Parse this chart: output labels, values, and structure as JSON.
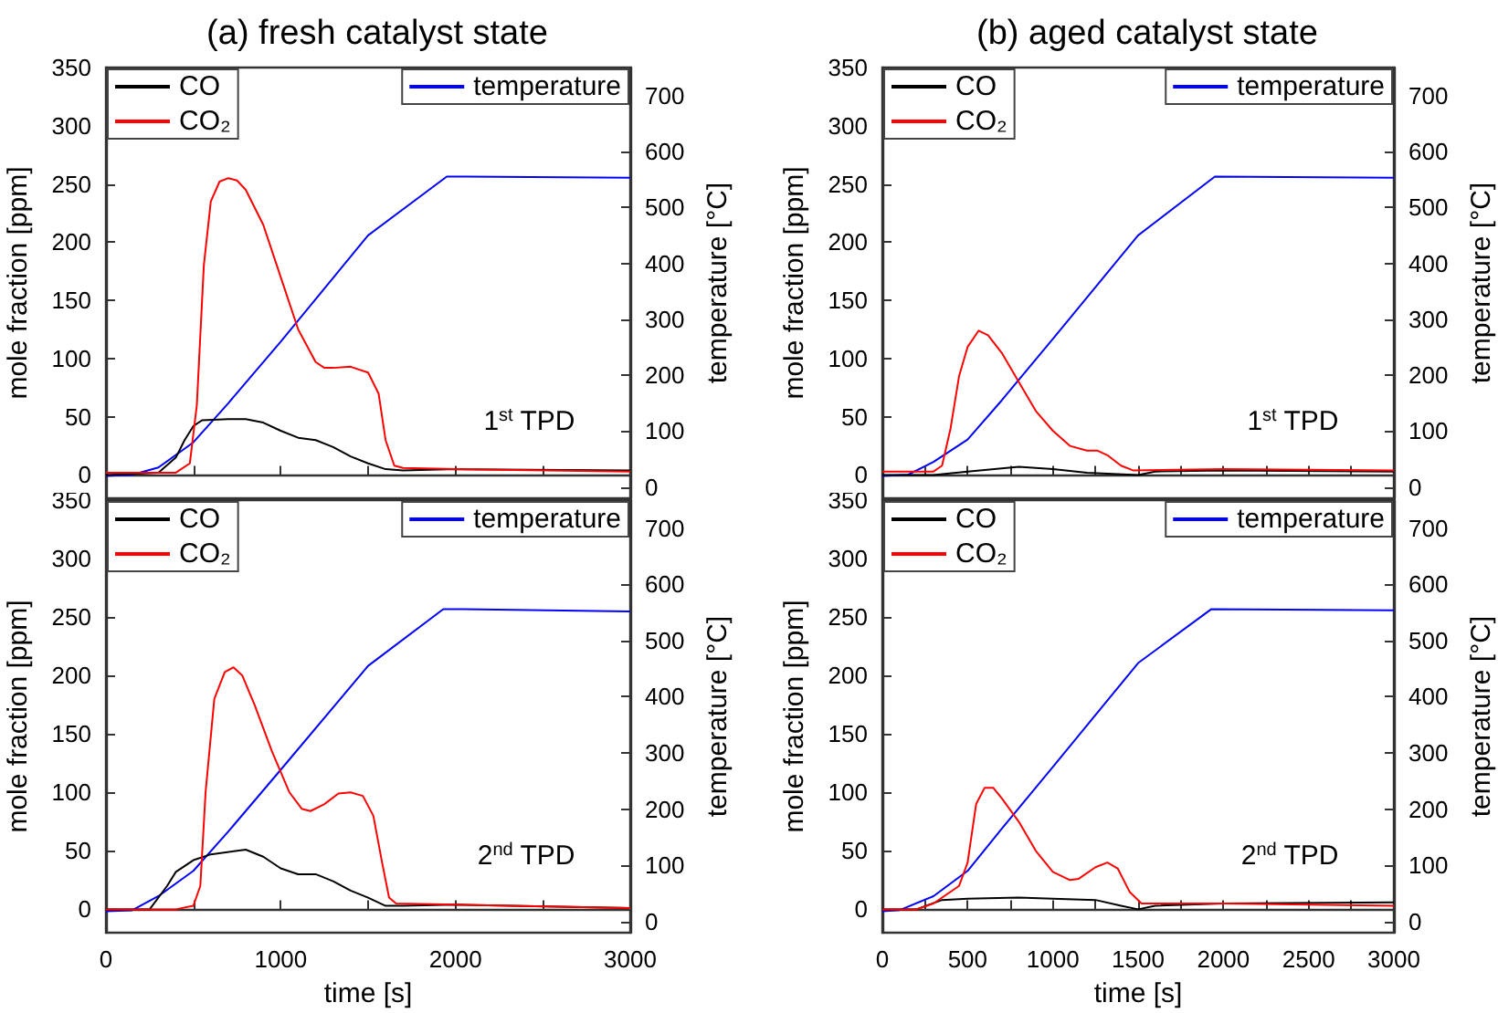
{
  "chart_data": [
    {
      "type": "line",
      "title": "(a) fresh catalyst state",
      "ylabel": "mole fraction [ppm]",
      "y2label": "temperature [°C]",
      "annotations": [
        "1$^{st}$ TPD"
      ],
      "legend": "top",
      "tick_labels": "y",
      "xlim": [
        0,
        3000
      ],
      "xticks": [
        0,
        {
          "value": 500,
          "label": null
        },
        1000,
        {
          "value": 1500,
          "label": null
        },
        2000,
        {
          "value": 2500,
          "label": null
        },
        3000
      ],
      "ylim": [
        -20,
        350
      ],
      "yticks": [
        0,
        50,
        100,
        150,
        200,
        250,
        300,
        350
      ],
      "y2lim": [
        -20,
        750
      ],
      "y2ticks": [
        0,
        100,
        200,
        300,
        400,
        500,
        600,
        700
      ],
      "series": [
        {
          "name": "CO",
          "color": "#000000",
          "x": [
            0,
            300,
            400,
            450,
            500,
            550,
            700,
            800,
            900,
            1000,
            1100,
            1200,
            1300,
            1400,
            1500,
            1600,
            1700,
            2000,
            3000
          ],
          "values": [
            0,
            2,
            15,
            30,
            42,
            47,
            48,
            48,
            45,
            38,
            32,
            30,
            24,
            16,
            10,
            5,
            4,
            5,
            4
          ]
        },
        {
          "name": "CO₂",
          "color": "#ff0000",
          "x": [
            0,
            400,
            480,
            520,
            560,
            600,
            650,
            700,
            750,
            800,
            900,
            1000,
            1100,
            1200,
            1250,
            1300,
            1400,
            1500,
            1560,
            1600,
            1650,
            1700,
            2000,
            3000
          ],
          "values": [
            2,
            2,
            10,
            60,
            180,
            235,
            252,
            255,
            253,
            245,
            215,
            170,
            125,
            97,
            92,
            92,
            93,
            88,
            70,
            30,
            8,
            6,
            5,
            3
          ]
        },
        {
          "name": "temperature",
          "color": "#0000ff",
          "axis": "y2",
          "x": [
            0,
            150,
            300,
            500,
            700,
            1000,
            1500,
            1950,
            2000,
            3000
          ],
          "values": [
            20,
            22,
            35,
            80,
            150,
            260,
            450,
            555,
            555,
            553
          ]
        }
      ]
    },
    {
      "type": "line",
      "title": "(b) aged catalyst state",
      "ylabel": "mole fraction [ppm]",
      "y2label": "temperature [°C]",
      "annotations": [
        "1$^{st}$ TPD"
      ],
      "legend": "top",
      "tick_labels": "y",
      "xlim": [
        0,
        3000
      ],
      "xticks": [
        0,
        {
          "value": 250,
          "label": null
        },
        500,
        {
          "value": 750,
          "label": null
        },
        1000,
        {
          "value": 1250,
          "label": null
        },
        1500,
        {
          "value": 1750,
          "label": null
        },
        2000,
        {
          "value": 2250,
          "label": null
        },
        2500,
        {
          "value": 2750,
          "label": null
        },
        3000
      ],
      "ylim": [
        -20,
        350
      ],
      "yticks": [
        0,
        50,
        100,
        150,
        200,
        250,
        300,
        350
      ],
      "y2lim": [
        -20,
        750
      ],
      "y2ticks": [
        0,
        100,
        200,
        300,
        400,
        500,
        600,
        700
      ],
      "series": [
        {
          "name": "CO",
          "color": "#000000",
          "x": [
            0,
            300,
            500,
            800,
            1000,
            1200,
            1500,
            1600,
            2000,
            3000
          ],
          "values": [
            0,
            0,
            3,
            7,
            5,
            2,
            0,
            3,
            4,
            3
          ]
        },
        {
          "name": "CO₂",
          "color": "#ff0000",
          "x": [
            0,
            300,
            350,
            400,
            450,
            500,
            565,
            620,
            700,
            800,
            900,
            1000,
            1100,
            1200,
            1260,
            1320,
            1400,
            1470,
            2000,
            3000
          ],
          "values": [
            3,
            3,
            8,
            40,
            85,
            110,
            124,
            120,
            105,
            80,
            55,
            38,
            25,
            21,
            21,
            17,
            8,
            4,
            5,
            4
          ]
        },
        {
          "name": "temperature",
          "color": "#0000ff",
          "axis": "y2",
          "x": [
            0,
            150,
            300,
            500,
            700,
            1000,
            1500,
            1950,
            3000
          ],
          "values": [
            20,
            22,
            45,
            85,
            155,
            265,
            450,
            555,
            553
          ]
        }
      ]
    },
    {
      "type": "line",
      "xlabel": "time [s]",
      "ylabel": "mole fraction [ppm]",
      "y2label": "temperature [°C]",
      "annotations": [
        "2$^{nd}$ TPD"
      ],
      "legend": "top",
      "xlim": [
        0,
        3000
      ],
      "xticks": [
        0,
        {
          "value": 500,
          "label": null
        },
        1000,
        {
          "value": 1500,
          "label": null
        },
        2000,
        {
          "value": 2500,
          "label": null
        },
        3000
      ],
      "ylim": [
        -20,
        350
      ],
      "yticks": [
        0,
        50,
        100,
        150,
        200,
        250,
        300,
        350
      ],
      "y2lim": [
        -20,
        750
      ],
      "y2ticks": [
        0,
        100,
        200,
        300,
        400,
        500,
        600,
        700
      ],
      "series": [
        {
          "name": "CO",
          "color": "#000000",
          "x": [
            0,
            250,
            350,
            400,
            500,
            600,
            800,
            900,
            1000,
            1100,
            1200,
            1300,
            1400,
            1500,
            1600,
            1700,
            2000,
            3000
          ],
          "values": [
            0,
            0,
            20,
            32,
            42,
            47,
            51,
            45,
            35,
            30,
            30,
            24,
            16,
            10,
            3,
            3,
            4,
            1
          ]
        },
        {
          "name": "CO₂",
          "color": "#ff0000",
          "x": [
            0,
            400,
            500,
            540,
            570,
            620,
            680,
            730,
            780,
            850,
            950,
            1050,
            1120,
            1170,
            1250,
            1330,
            1400,
            1470,
            1530,
            1580,
            1620,
            1660,
            2000,
            3000
          ],
          "values": [
            0,
            0,
            3,
            20,
            100,
            180,
            203,
            207,
            200,
            175,
            135,
            100,
            86,
            84,
            90,
            99,
            100,
            97,
            80,
            40,
            10,
            5,
            4,
            1
          ]
        },
        {
          "name": "temperature",
          "color": "#0000ff",
          "axis": "y2",
          "x": [
            0,
            150,
            300,
            500,
            700,
            1000,
            1500,
            1930,
            2000,
            3000
          ],
          "values": [
            18,
            20,
            45,
            90,
            160,
            270,
            455,
            556,
            556,
            552
          ]
        }
      ]
    },
    {
      "type": "line",
      "xlabel": "time [s]",
      "ylabel": "mole fraction [ppm]",
      "y2label": "temperature [°C]",
      "annotations": [
        "2$^{nd}$ TPD"
      ],
      "legend": "top",
      "xlim": [
        0,
        3000
      ],
      "xticks": [
        0,
        {
          "value": 250,
          "label": null
        },
        500,
        {
          "value": 750,
          "label": null
        },
        1000,
        {
          "value": 1250,
          "label": null
        },
        1500,
        {
          "value": 1750,
          "label": null
        },
        2000,
        {
          "value": 2250,
          "label": null
        },
        2500,
        {
          "value": 2750,
          "label": null
        },
        3000
      ],
      "ylim": [
        -20,
        350
      ],
      "yticks": [
        0,
        50,
        100,
        150,
        200,
        250,
        300,
        350
      ],
      "y2lim": [
        -20,
        750
      ],
      "y2ticks": [
        0,
        100,
        200,
        300,
        400,
        500,
        600,
        700
      ],
      "series": [
        {
          "name": "CO",
          "color": "#000000",
          "x": [
            0,
            200,
            350,
            500,
            800,
            1000,
            1250,
            1400,
            1500,
            1600,
            2000,
            3000
          ],
          "values": [
            0,
            0,
            8,
            9,
            10,
            9,
            8,
            3,
            0,
            3,
            5,
            6
          ]
        },
        {
          "name": "CO₂",
          "color": "#ff0000",
          "x": [
            0,
            200,
            300,
            450,
            500,
            550,
            600,
            650,
            700,
            800,
            900,
            1000,
            1100,
            1150,
            1250,
            1320,
            1380,
            1450,
            1520,
            2000,
            3000
          ],
          "values": [
            0,
            0,
            5,
            20,
            40,
            90,
            104,
            104,
            95,
            75,
            50,
            32,
            25,
            26,
            36,
            40,
            35,
            15,
            5,
            5,
            3
          ]
        },
        {
          "name": "temperature",
          "color": "#0000ff",
          "axis": "y2",
          "x": [
            0,
            100,
            300,
            500,
            700,
            1000,
            1500,
            1930,
            3000
          ],
          "values": [
            18,
            20,
            45,
            90,
            165,
            275,
            460,
            556,
            554
          ]
        }
      ]
    }
  ]
}
